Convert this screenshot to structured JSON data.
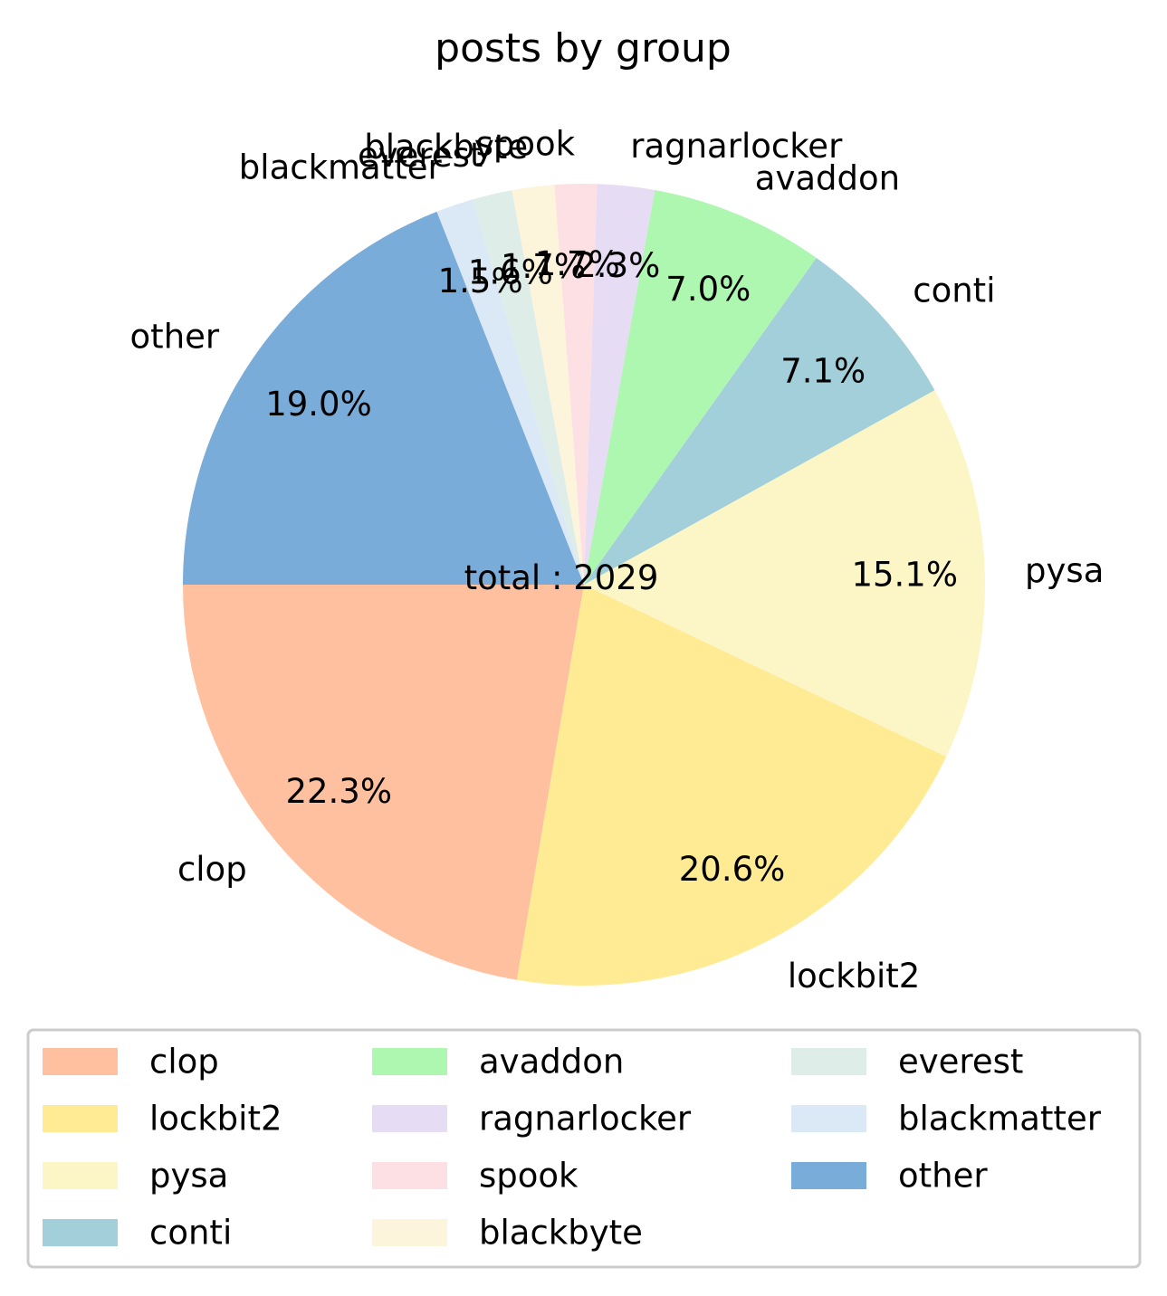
{
  "chart_data": {
    "type": "pie",
    "title": "posts by group",
    "center_label": "total : 2029",
    "slices": [
      {
        "name": "clop",
        "percent": 22.3,
        "pct_label": "22.3%",
        "color": "#fec09f"
      },
      {
        "name": "lockbit2",
        "percent": 20.6,
        "pct_label": "20.6%",
        "color": "#ffeb94"
      },
      {
        "name": "pysa",
        "percent": 15.1,
        "pct_label": "15.1%",
        "color": "#fcf5c6"
      },
      {
        "name": "conti",
        "percent": 7.1,
        "pct_label": "7.1%",
        "color": "#a2cfd9"
      },
      {
        "name": "avaddon",
        "percent": 7.0,
        "pct_label": "7.0%",
        "color": "#aef7b1"
      },
      {
        "name": "ragnarlocker",
        "percent": 2.3,
        "pct_label": "2.3%",
        "color": "#e6dcf4"
      },
      {
        "name": "spook",
        "percent": 1.7,
        "pct_label": "1.7%",
        "color": "#fce0e3"
      },
      {
        "name": "blackbyte",
        "percent": 1.7,
        "pct_label": "1.7%",
        "color": "#fdf4dc"
      },
      {
        "name": "everest",
        "percent": 1.6,
        "pct_label": "1.6%",
        "color": "#deede7"
      },
      {
        "name": "blackmatter",
        "percent": 1.5,
        "pct_label": "1.5%",
        "color": "#dbe9f6"
      },
      {
        "name": "other",
        "percent": 19.0,
        "pct_label": "19.0%",
        "color": "#7aacd9"
      }
    ],
    "legend": {
      "placement": "bottom",
      "columns": 3,
      "entries": [
        "clop",
        "lockbit2",
        "pysa",
        "conti",
        "avaddon",
        "ragnarlocker",
        "spook",
        "blackbyte",
        "everest",
        "blackmatter",
        "other"
      ]
    }
  }
}
